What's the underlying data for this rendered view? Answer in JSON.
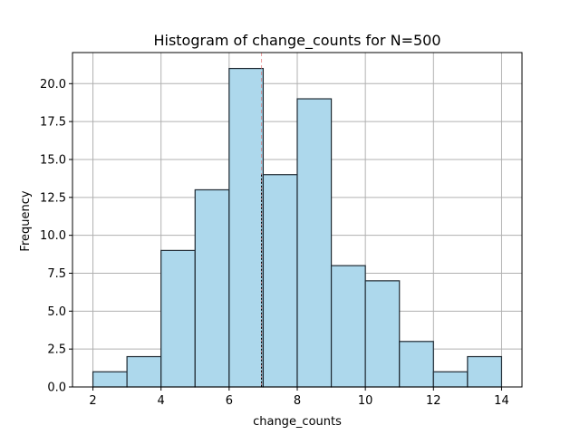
{
  "chart_data": {
    "type": "bar",
    "title": "Histogram of change_counts for N=500",
    "xlabel": "change_counts",
    "ylabel": "Frequency",
    "bin_edges": [
      2,
      3,
      4,
      5,
      6,
      7,
      8,
      9,
      10,
      11,
      12,
      13,
      14
    ],
    "values": [
      1,
      2,
      9,
      13,
      21,
      14,
      19,
      8,
      7,
      3,
      1,
      2
    ],
    "xlim": [
      1.4,
      14.6
    ],
    "ylim": [
      0,
      22.05
    ],
    "xticks": [
      "2",
      "4",
      "6",
      "8",
      "10",
      "12",
      "14"
    ],
    "yticks": [
      "0.0",
      "2.5",
      "5.0",
      "7.5",
      "10.0",
      "12.5",
      "15.0",
      "17.5",
      "20.0"
    ],
    "reference_line": 6.95,
    "grid": true,
    "colors": {
      "bar_fill": "#add8ec",
      "bar_edge": "#1f2a33",
      "grid": "#b0b0b0",
      "reference_line": "#e06060"
    }
  }
}
